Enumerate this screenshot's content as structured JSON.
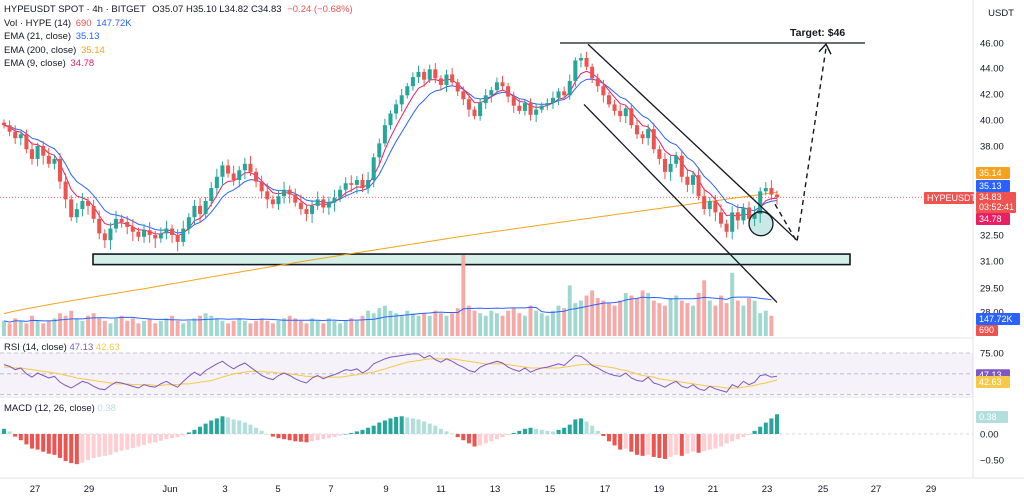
{
  "header": {
    "symbol": "HYPEUSDT",
    "market": "SPOT",
    "interval": "4h",
    "exchange": "BITGET",
    "ohlc": "O35.07  H35.10  L34.82  C34.83",
    "change": "−0.24 (−0.68%)",
    "currency": "USDT"
  },
  "legend": [
    {
      "name": "Vol · HYPE (14)",
      "values": [
        "690",
        "147.72K"
      ],
      "colors": [
        "#ef5350",
        "#2962ff"
      ]
    },
    {
      "name": "EMA (21, close)",
      "values": [
        "35.13"
      ],
      "colors": [
        "#2962ff"
      ]
    },
    {
      "name": "EMA (200, close)",
      "values": [
        "35.14"
      ],
      "colors": [
        "#f7a21b"
      ]
    },
    {
      "name": "EMA (9, close)",
      "values": [
        "34.78"
      ],
      "colors": [
        "#e91e63"
      ]
    }
  ],
  "rsi_title": {
    "name": "RSI (14, close)",
    "values": [
      "47.13",
      "42.63"
    ],
    "colors": [
      "#7e57c2",
      "#f7c948"
    ]
  },
  "macd_title": {
    "name": "MACD (12, 26, close)",
    "values": [
      "0.38"
    ],
    "colors": [
      "#b2dfdb"
    ]
  },
  "annotations": {
    "target": "Target: $46"
  },
  "chart_data": {
    "type": "candlestick",
    "x_labels": [
      "27",
      "29",
      "Jun",
      "3",
      "5",
      "7",
      "9",
      "11",
      "13",
      "15",
      "17",
      "19",
      "21",
      "23",
      "25",
      "27",
      "29"
    ],
    "y_ticks": [
      "46.00",
      "44.00",
      "42.00",
      "40.00",
      "38.00",
      "32.50",
      "31.00",
      "29.50",
      "28.00"
    ],
    "price_labels": [
      {
        "text": "35.14",
        "value": 35.14,
        "color": "#f7a21b"
      },
      {
        "text": "35.13",
        "value": 35.13,
        "color": "#2962ff"
      },
      {
        "text": "34.83",
        "value": 34.83,
        "color": "#ef5350"
      },
      {
        "text": "HYPEUSDT",
        "value": 34.83,
        "color": "#ef5350"
      },
      {
        "text": "03:52:41",
        "value": 34.83,
        "color": "#ef5350"
      },
      {
        "text": "34.78",
        "value": 34.78,
        "color": "#e91e63"
      }
    ],
    "volume_labels": [
      {
        "text": "147.72K",
        "color": "#2962ff"
      },
      {
        "text": "690",
        "color": "#ef5350"
      }
    ],
    "support_zone": [
      30.8,
      31.4
    ],
    "target_price": 46,
    "close_series": [
      39.6,
      39.1,
      38.6,
      38.9,
      37.8,
      37.2,
      38.0,
      37.4,
      36.9,
      37.2,
      35.8,
      34.7,
      33.6,
      34.1,
      34.6,
      34.3,
      33.5,
      32.6,
      32.2,
      32.9,
      33.5,
      33.3,
      33.0,
      32.7,
      32.4,
      32.8,
      32.5,
      32.3,
      32.6,
      32.9,
      32.5,
      32.1,
      32.9,
      33.6,
      34.3,
      33.8,
      34.6,
      35.4,
      36.1,
      36.8,
      36.3,
      35.9,
      36.5,
      36.9,
      36.4,
      35.8,
      35.2,
      34.7,
      34.4,
      34.9,
      35.3,
      35.0,
      34.5,
      34.1,
      33.8,
      34.3,
      34.7,
      34.2,
      34.5,
      34.8,
      35.3,
      35.7,
      35.6,
      35.9,
      35.4,
      35.9,
      37.3,
      38.2,
      39.6,
      40.5,
      41.2,
      41.9,
      42.6,
      43.3,
      43.7,
      43.1,
      43.9,
      43.2,
      42.7,
      43.5,
      42.9,
      42.2,
      41.6,
      40.8,
      40.3,
      41.3,
      41.9,
      42.3,
      42.9,
      42.6,
      41.8,
      41.1,
      40.7,
      41.3,
      40.4,
      40.8,
      41.1,
      41.3,
      41.7,
      42.2,
      41.9,
      43.0,
      44.6,
      44.8,
      44.1,
      43.2,
      42.6,
      41.9,
      41.2,
      40.7,
      40.3,
      40.9,
      39.6,
      38.9,
      38.6,
      39.3,
      37.8,
      37.2,
      36.4,
      36.9,
      37.4,
      36.1,
      35.6,
      36.2,
      34.9,
      34.1,
      34.6,
      33.9,
      33.2,
      32.7,
      33.9,
      33.4,
      34.2,
      33.5,
      33.8,
      35.2,
      35.4,
      35.0,
      34.83
    ],
    "volume_series": [
      6,
      5,
      7,
      6,
      5,
      8,
      6,
      5,
      6,
      7,
      9,
      8,
      10,
      7,
      6,
      8,
      9,
      7,
      6,
      5,
      7,
      8,
      6,
      7,
      5,
      6,
      7,
      5,
      6,
      7,
      8,
      6,
      5,
      6,
      7,
      8,
      9,
      8,
      7,
      6,
      5,
      6,
      7,
      6,
      5,
      6,
      7,
      6,
      5,
      6,
      7,
      8,
      7,
      6,
      5,
      7,
      6,
      5,
      7,
      6,
      5,
      6,
      7,
      6,
      8,
      10,
      9,
      11,
      12,
      10,
      9,
      8,
      10,
      9,
      8,
      9,
      8,
      10,
      9,
      8,
      9,
      11,
      32,
      12,
      10,
      9,
      8,
      10,
      9,
      8,
      10,
      11,
      9,
      8,
      12,
      10,
      9,
      8,
      10,
      12,
      11,
      20,
      13,
      14,
      16,
      18,
      15,
      14,
      13,
      12,
      14,
      17,
      16,
      15,
      18,
      17,
      14,
      13,
      12,
      15,
      16,
      14,
      13,
      12,
      17,
      22,
      14,
      12,
      16,
      13,
      25,
      14,
      12,
      15,
      14,
      9,
      10,
      8
    ],
    "rsi_series": [
      61,
      59,
      55,
      57,
      50,
      46,
      51,
      48,
      45,
      47,
      40,
      36,
      33,
      37,
      41,
      39,
      35,
      32,
      31,
      36,
      40,
      39,
      37,
      35,
      33,
      37,
      35,
      34,
      38,
      41,
      37,
      34,
      41,
      47,
      52,
      48,
      54,
      58,
      62,
      65,
      60,
      56,
      60,
      63,
      58,
      53,
      48,
      45,
      43,
      48,
      51,
      48,
      44,
      41,
      39,
      45,
      48,
      44,
      47,
      49,
      52,
      55,
      54,
      56,
      51,
      55,
      62,
      65,
      68,
      70,
      71,
      72,
      73,
      74,
      74,
      69,
      72,
      67,
      64,
      68,
      65,
      61,
      58,
      54,
      52,
      58,
      61,
      63,
      65,
      63,
      58,
      55,
      53,
      57,
      52,
      55,
      57,
      58,
      60,
      62,
      60,
      66,
      72,
      71,
      66,
      60,
      57,
      53,
      50,
      48,
      47,
      51,
      45,
      42,
      41,
      46,
      39,
      37,
      34,
      38,
      41,
      35,
      33,
      37,
      32,
      30,
      35,
      32,
      30,
      28,
      37,
      34,
      41,
      37,
      40,
      48,
      49,
      46,
      47.13
    ],
    "rsi_ma_series": [
      58,
      58,
      57,
      57,
      56,
      55,
      54,
      53,
      52,
      51,
      50,
      48,
      47,
      45,
      44,
      43,
      42,
      41,
      40,
      39,
      38,
      38,
      38,
      37,
      37,
      37,
      37,
      36,
      36,
      37,
      37,
      37,
      38,
      38,
      39,
      40,
      41,
      42,
      44,
      46,
      48,
      50,
      51,
      52,
      53,
      53,
      53,
      52,
      52,
      51,
      51,
      50,
      49,
      48,
      47,
      47,
      47,
      46,
      46,
      46,
      46,
      47,
      48,
      49,
      50,
      51,
      52,
      54,
      56,
      58,
      60,
      62,
      64,
      65,
      66,
      67,
      68,
      68,
      68,
      68,
      68,
      67,
      66,
      65,
      64,
      63,
      62,
      62,
      62,
      62,
      61,
      60,
      59,
      58,
      57,
      57,
      57,
      57,
      57,
      57,
      58,
      59,
      60,
      61,
      61,
      61,
      60,
      59,
      58,
      57,
      55,
      54,
      52,
      50,
      48,
      47,
      46,
      44,
      43,
      42,
      41,
      40,
      39,
      38,
      37,
      36,
      35,
      35,
      34,
      33,
      33,
      33,
      34,
      35,
      36,
      38,
      39,
      41,
      42.63
    ],
    "macd_hist_series": [
      0.1,
      0.05,
      -0.05,
      -0.12,
      -0.2,
      -0.28,
      -0.3,
      -0.34,
      -0.38,
      -0.4,
      -0.46,
      -0.52,
      -0.56,
      -0.58,
      -0.55,
      -0.5,
      -0.46,
      -0.44,
      -0.42,
      -0.4,
      -0.35,
      -0.32,
      -0.3,
      -0.27,
      -0.24,
      -0.21,
      -0.18,
      -0.16,
      -0.13,
      -0.1,
      -0.08,
      -0.06,
      -0.03,
      0.03,
      0.08,
      0.14,
      0.2,
      0.26,
      0.3,
      0.34,
      0.32,
      0.28,
      0.26,
      0.22,
      0.18,
      0.12,
      0.06,
      0,
      -0.05,
      -0.08,
      -0.1,
      -0.12,
      -0.14,
      -0.15,
      -0.16,
      -0.14,
      -0.12,
      -0.1,
      -0.08,
      -0.06,
      -0.03,
      0,
      0.02,
      0.05,
      0.08,
      0.12,
      0.16,
      0.22,
      0.26,
      0.3,
      0.33,
      0.34,
      0.32,
      0.3,
      0.28,
      0.24,
      0.2,
      0.16,
      0.1,
      0.05,
      0,
      -0.06,
      -0.12,
      -0.18,
      -0.24,
      -0.22,
      -0.18,
      -0.14,
      -0.1,
      -0.06,
      -0.02,
      0.02,
      0.06,
      0.1,
      0.12,
      0.1,
      0.08,
      0.06,
      0.05,
      0.08,
      0.12,
      0.18,
      0.28,
      0.3,
      0.24,
      0.16,
      0.06,
      -0.04,
      -0.14,
      -0.22,
      -0.3,
      -0.28,
      -0.34,
      -0.4,
      -0.42,
      -0.4,
      -0.44,
      -0.46,
      -0.48,
      -0.44,
      -0.4,
      -0.42,
      -0.38,
      -0.34,
      -0.36,
      -0.33,
      -0.3,
      -0.28,
      -0.24,
      -0.18,
      -0.14,
      -0.1,
      -0.06,
      -0.02,
      0.06,
      0.14,
      0.22,
      0.3,
      0.38
    ]
  }
}
